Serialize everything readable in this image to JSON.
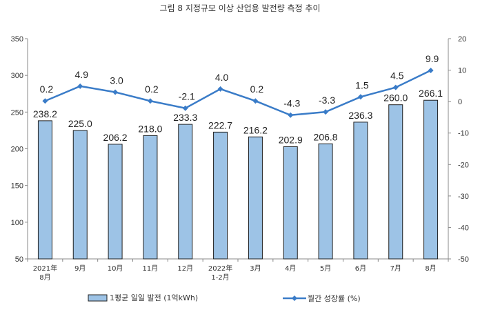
{
  "chart_data": {
    "type": "bar",
    "title": "그림 8 지정규모 이상 산업용 발전량 측정 추이",
    "categories": [
      [
        "2021年",
        "8月"
      ],
      [
        "9月"
      ],
      [
        "10月"
      ],
      [
        "11月"
      ],
      [
        "12月"
      ],
      [
        "2022年",
        "1-2月"
      ],
      [
        "3月"
      ],
      [
        "4月"
      ],
      [
        "5月"
      ],
      [
        "6月"
      ],
      [
        "7月"
      ],
      [
        "8月"
      ]
    ],
    "series": [
      {
        "name": "1평균 일일 발전 (1억kWh)",
        "type": "bar",
        "axis": "left",
        "values": [
          238.2,
          225.0,
          206.2,
          218.0,
          233.3,
          222.7,
          216.2,
          202.9,
          206.8,
          236.3,
          260.0,
          266.1
        ],
        "labels": [
          "238.2",
          "225.0",
          "206.2",
          "218.0",
          "233.3",
          "222.7",
          "216.2",
          "202.9",
          "206.8",
          "236.3",
          "260.0",
          "266.1"
        ],
        "color": "#9DC3E6"
      },
      {
        "name": "월간 성장률 (%)",
        "type": "line",
        "axis": "right",
        "values": [
          0.2,
          4.9,
          3.0,
          0.2,
          -2.1,
          4.0,
          0.2,
          -4.3,
          -3.3,
          1.5,
          4.5,
          9.9
        ],
        "labels": [
          "0.2",
          "4.9",
          "3.0",
          "0.2",
          "-2.1",
          "4.0",
          "0.2",
          "-4.3",
          "-3.3",
          "1.5",
          "4.5",
          "9.9"
        ],
        "color": "#3A7CC8"
      }
    ],
    "y_left": {
      "min": 50,
      "max": 350,
      "step": 50
    },
    "y_right": {
      "min": -50,
      "max": 20,
      "step": 10
    },
    "legend_position": "bottom",
    "grid": false
  }
}
